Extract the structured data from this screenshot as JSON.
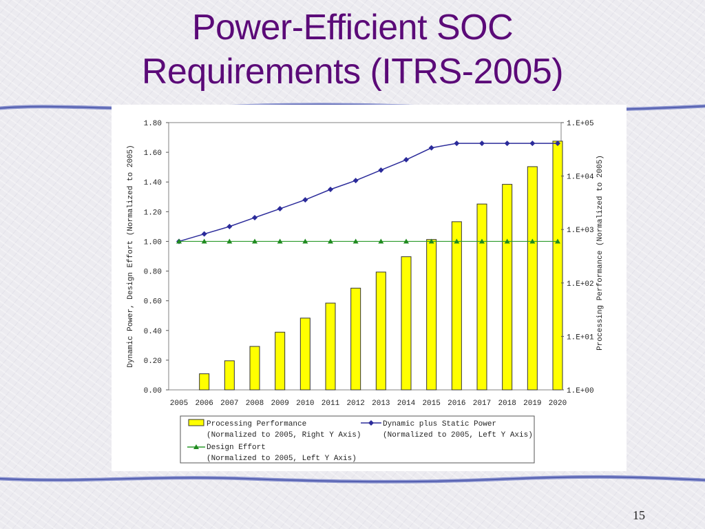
{
  "slide": {
    "title_line1": "Power-Efficient SOC",
    "title_line2": "Requirements (ITRS-2005)",
    "page_number": "15"
  },
  "colors": {
    "title": "#5b0a78",
    "bar_fill": "#ffff00",
    "power_line": "#2b2b9a",
    "effort_line": "#2a9a2a",
    "rule": "#5560b0"
  },
  "chart_data": {
    "type": "bar+line",
    "x": [
      2005,
      2006,
      2007,
      2008,
      2009,
      2010,
      2011,
      2012,
      2013,
      2014,
      2015,
      2016,
      2017,
      2018,
      2019,
      2020
    ],
    "x_tick_labels": [
      "2005",
      "2006",
      "2007",
      "2008",
      "2009",
      "2010",
      "2011",
      "2012",
      "2013",
      "2014",
      "2015",
      "2016",
      "2017",
      "2018",
      "2019",
      "2020"
    ],
    "ylabel_left": "Dynamic Power, Design Effort (Normalized to 2005)",
    "ylabel_right": "Processing Performance (Normalized to 2005)",
    "ylim_left": [
      0,
      1.8
    ],
    "y_left_ticks": [
      "0.00",
      "0.20",
      "0.40",
      "0.60",
      "0.80",
      "1.00",
      "1.20",
      "1.40",
      "1.60",
      "1.80"
    ],
    "ylim_right_log10": [
      0,
      5
    ],
    "y_right_ticks": [
      "1.E+00",
      "1.E+01",
      "1.E+02",
      "1.E+03",
      "1.E+04",
      "1.E+05"
    ],
    "y_right_scale": "log",
    "grid": false,
    "legend_position": "bottom",
    "series": [
      {
        "name": "Processing Performance",
        "name_note": "(Normalized to 2005, Right Y Axis)",
        "type": "bar",
        "axis": "right",
        "values": [
          1,
          2,
          3.5,
          6.5,
          12,
          22,
          42,
          80,
          160,
          310,
          650,
          1400,
          3000,
          7000,
          15000,
          45000
        ]
      },
      {
        "name": "Dynamic plus Static Power",
        "name_note": "(Normalized to 2005, Left Y Axis)",
        "type": "line",
        "marker": "diamond",
        "axis": "left",
        "values": [
          1.0,
          1.05,
          1.1,
          1.16,
          1.22,
          1.28,
          1.35,
          1.41,
          1.48,
          1.55,
          1.63,
          1.66,
          1.66,
          1.66,
          1.66,
          1.66
        ]
      },
      {
        "name": "Design Effort",
        "name_note": "(Normalized to 2005, Left Y Axis)",
        "type": "line",
        "marker": "triangle",
        "axis": "left",
        "values": [
          1.0,
          1.0,
          1.0,
          1.0,
          1.0,
          1.0,
          1.0,
          1.0,
          1.0,
          1.0,
          1.0,
          1.0,
          1.0,
          1.0,
          1.0,
          1.0
        ]
      }
    ]
  }
}
